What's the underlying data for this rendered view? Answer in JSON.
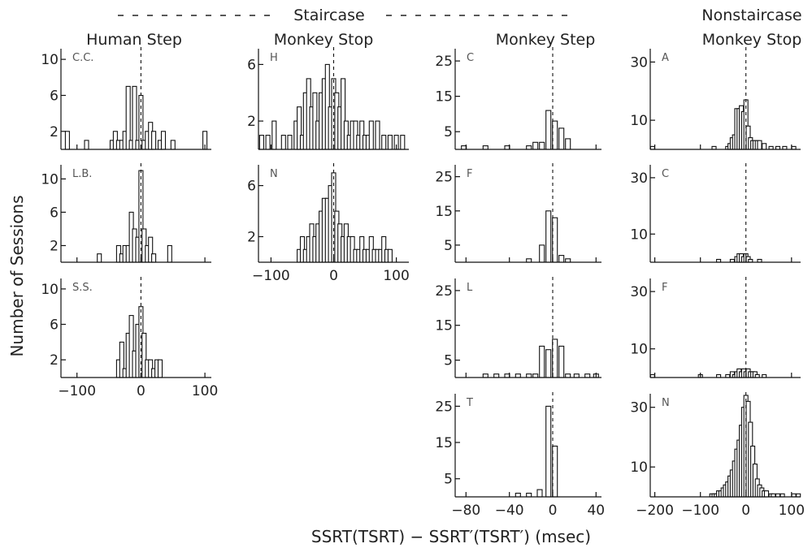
{
  "figure": {
    "super_header": "Staircase",
    "column_headers": [
      "Human Step",
      "Monkey Stop",
      "Monkey Step",
      "Nonstaircase",
      "Monkey Stop"
    ],
    "y_axis_label": "Number of Sessions",
    "x_axis_label": "SSRT(TSRT) − SSRT′(TSRT′) (msec)"
  },
  "chart_data": [
    {
      "type": "bar",
      "title": "C.C.",
      "group": "Human Step",
      "xlim": [
        -125,
        110
      ],
      "ylim": [
        0,
        11
      ],
      "yticks": [
        2,
        6,
        10
      ],
      "xticks": [
        -100,
        0,
        100
      ],
      "show_xtick_labels": false,
      "bins": [
        [
          -115,
          2
        ],
        [
          -85,
          1
        ],
        [
          -45,
          1
        ],
        [
          -40,
          2
        ],
        [
          -35,
          1
        ],
        [
          -30,
          1
        ],
        [
          -25,
          2
        ],
        [
          -20,
          7
        ],
        [
          -15,
          1
        ],
        [
          -10,
          7
        ],
        [
          -5,
          1
        ],
        [
          0,
          6
        ],
        [
          5,
          1
        ],
        [
          10,
          2
        ],
        [
          15,
          3
        ],
        [
          20,
          2
        ],
        [
          30,
          1
        ],
        [
          35,
          2
        ],
        [
          50,
          1
        ],
        [
          100,
          2
        ]
      ]
    },
    {
      "type": "bar",
      "title": "L.B.",
      "group": "Human Step",
      "xlim": [
        -125,
        110
      ],
      "ylim": [
        0,
        11.5
      ],
      "yticks": [
        2,
        6,
        10
      ],
      "xticks": [
        -100,
        0,
        100
      ],
      "show_xtick_labels": false,
      "bins": [
        [
          -65,
          1
        ],
        [
          -35,
          2
        ],
        [
          -30,
          1
        ],
        [
          -25,
          2
        ],
        [
          -20,
          2
        ],
        [
          -15,
          6
        ],
        [
          -10,
          4
        ],
        [
          -5,
          3
        ],
        [
          0,
          11
        ],
        [
          5,
          4
        ],
        [
          10,
          2
        ],
        [
          15,
          3
        ],
        [
          20,
          1
        ],
        [
          45,
          2
        ]
      ]
    },
    {
      "type": "bar",
      "title": "S.S.",
      "group": "Human Step",
      "xlim": [
        -125,
        110
      ],
      "ylim": [
        0,
        11
      ],
      "yticks": [
        2,
        6,
        10
      ],
      "xticks": [
        -100,
        0,
        100
      ],
      "show_xtick_labels": true,
      "bins": [
        [
          -35,
          2
        ],
        [
          -30,
          4
        ],
        [
          -25,
          1
        ],
        [
          -20,
          5
        ],
        [
          -15,
          7
        ],
        [
          -10,
          3
        ],
        [
          -5,
          6
        ],
        [
          0,
          8
        ],
        [
          5,
          5
        ],
        [
          10,
          2
        ],
        [
          15,
          2
        ],
        [
          20,
          1
        ],
        [
          25,
          2
        ],
        [
          30,
          2
        ]
      ]
    },
    {
      "type": "bar",
      "title": "H",
      "group": "Monkey Stop",
      "xlim": [
        -120,
        120
      ],
      "ylim": [
        0,
        7
      ],
      "yticks": [
        2,
        6
      ],
      "xticks": [
        -100,
        0,
        100
      ],
      "show_xtick_labels": false,
      "bins": [
        [
          -115,
          1
        ],
        [
          -105,
          1
        ],
        [
          -95,
          2
        ],
        [
          -80,
          1
        ],
        [
          -70,
          1
        ],
        [
          -60,
          2
        ],
        [
          -55,
          3
        ],
        [
          -50,
          1
        ],
        [
          -45,
          4
        ],
        [
          -40,
          5
        ],
        [
          -35,
          3
        ],
        [
          -30,
          4
        ],
        [
          -25,
          2
        ],
        [
          -20,
          4
        ],
        [
          -15,
          5
        ],
        [
          -10,
          6
        ],
        [
          -5,
          3
        ],
        [
          0,
          5
        ],
        [
          5,
          4
        ],
        [
          10,
          3
        ],
        [
          15,
          5
        ],
        [
          20,
          2
        ],
        [
          25,
          1
        ],
        [
          30,
          2
        ],
        [
          35,
          2
        ],
        [
          40,
          1
        ],
        [
          45,
          2
        ],
        [
          50,
          1
        ],
        [
          55,
          1
        ],
        [
          60,
          2
        ],
        [
          70,
          2
        ],
        [
          80,
          1
        ],
        [
          90,
          1
        ],
        [
          100,
          1
        ],
        [
          110,
          1
        ]
      ]
    },
    {
      "type": "bar",
      "title": "N",
      "group": "Monkey Stop",
      "xlim": [
        -120,
        120
      ],
      "ylim": [
        0,
        7.5
      ],
      "yticks": [
        2,
        6
      ],
      "xticks": [
        -100,
        0,
        100
      ],
      "show_xtick_labels": true,
      "bins": [
        [
          -55,
          1
        ],
        [
          -50,
          2
        ],
        [
          -45,
          1
        ],
        [
          -40,
          2
        ],
        [
          -35,
          3
        ],
        [
          -30,
          2
        ],
        [
          -25,
          3
        ],
        [
          -20,
          4
        ],
        [
          -15,
          5
        ],
        [
          -10,
          5
        ],
        [
          -5,
          6
        ],
        [
          0,
          7
        ],
        [
          5,
          4
        ],
        [
          10,
          3
        ],
        [
          15,
          2
        ],
        [
          20,
          3
        ],
        [
          25,
          2
        ],
        [
          30,
          2
        ],
        [
          35,
          1
        ],
        [
          40,
          1
        ],
        [
          45,
          2
        ],
        [
          50,
          1
        ],
        [
          55,
          1
        ],
        [
          60,
          2
        ],
        [
          65,
          1
        ],
        [
          70,
          1
        ],
        [
          75,
          1
        ],
        [
          80,
          2
        ],
        [
          85,
          1
        ],
        [
          90,
          1
        ]
      ]
    },
    {
      "type": "bar",
      "title": "C",
      "group": "Monkey Step",
      "xlim": [
        -90,
        45
      ],
      "ylim": [
        0,
        28
      ],
      "yticks": [
        5,
        15,
        25
      ],
      "xticks": [
        -80,
        -40,
        0,
        40
      ],
      "show_xtick_labels": false,
      "bins": [
        [
          -82,
          1
        ],
        [
          -62,
          1
        ],
        [
          -42,
          1
        ],
        [
          -22,
          1
        ],
        [
          -16,
          2
        ],
        [
          -10,
          2
        ],
        [
          -4,
          11
        ],
        [
          2,
          8
        ],
        [
          8,
          6
        ],
        [
          14,
          3
        ]
      ]
    },
    {
      "type": "bar",
      "title": "F",
      "group": "Monkey Step",
      "xlim": [
        -90,
        45
      ],
      "ylim": [
        0,
        28
      ],
      "yticks": [
        5,
        15,
        25
      ],
      "xticks": [
        -80,
        -40,
        0,
        40
      ],
      "show_xtick_labels": false,
      "bins": [
        [
          -22,
          1
        ],
        [
          -10,
          5
        ],
        [
          -4,
          15
        ],
        [
          2,
          13
        ],
        [
          8,
          2
        ],
        [
          14,
          1
        ]
      ]
    },
    {
      "type": "bar",
      "title": "L",
      "group": "Monkey Step",
      "xlim": [
        -90,
        45
      ],
      "ylim": [
        0,
        28
      ],
      "yticks": [
        5,
        15,
        25
      ],
      "xticks": [
        -80,
        -40,
        0,
        40
      ],
      "show_xtick_labels": false,
      "bins": [
        [
          -62,
          1
        ],
        [
          -52,
          1
        ],
        [
          -42,
          1
        ],
        [
          -32,
          1
        ],
        [
          -22,
          1
        ],
        [
          -16,
          1
        ],
        [
          -10,
          9
        ],
        [
          -4,
          8
        ],
        [
          2,
          11
        ],
        [
          8,
          9
        ],
        [
          14,
          1
        ],
        [
          22,
          1
        ],
        [
          32,
          1
        ],
        [
          40,
          1
        ]
      ]
    },
    {
      "type": "bar",
      "title": "T",
      "group": "Monkey Step",
      "xlim": [
        -90,
        45
      ],
      "ylim": [
        0,
        28
      ],
      "yticks": [
        5,
        15,
        25
      ],
      "xticks": [
        -80,
        -40,
        0,
        40
      ],
      "show_xtick_labels": true,
      "bins": [
        [
          -32,
          1
        ],
        [
          -22,
          1
        ],
        [
          -12,
          2
        ],
        [
          -4,
          25
        ],
        [
          2,
          14
        ]
      ]
    },
    {
      "type": "bar",
      "title": "A",
      "group": "Nonstaircase Monkey Stop",
      "xlim": [
        -210,
        120
      ],
      "ylim": [
        0,
        34
      ],
      "yticks": [
        10,
        30
      ],
      "xticks": [
        -200,
        -100,
        0,
        100
      ],
      "show_xtick_labels": false,
      "bins": [
        [
          -205,
          1
        ],
        [
          -70,
          1
        ],
        [
          -40,
          1
        ],
        [
          -35,
          2
        ],
        [
          -30,
          4
        ],
        [
          -25,
          5
        ],
        [
          -20,
          14
        ],
        [
          -15,
          14
        ],
        [
          -10,
          15
        ],
        [
          -5,
          13
        ],
        [
          0,
          17
        ],
        [
          5,
          8
        ],
        [
          10,
          4
        ],
        [
          15,
          3
        ],
        [
          20,
          3
        ],
        [
          25,
          3
        ],
        [
          30,
          3
        ],
        [
          40,
          2
        ],
        [
          55,
          1
        ],
        [
          70,
          1
        ],
        [
          85,
          1
        ],
        [
          105,
          1
        ]
      ]
    },
    {
      "type": "bar",
      "title": "C",
      "group": "Nonstaircase Monkey Stop",
      "xlim": [
        -210,
        120
      ],
      "ylim": [
        0,
        34
      ],
      "yticks": [
        10,
        30
      ],
      "xticks": [
        -200,
        -100,
        0,
        100
      ],
      "show_xtick_labels": false,
      "bins": [
        [
          -60,
          1
        ],
        [
          -30,
          1
        ],
        [
          -20,
          2
        ],
        [
          -15,
          3
        ],
        [
          -10,
          3
        ],
        [
          -5,
          2
        ],
        [
          0,
          3
        ],
        [
          5,
          2
        ],
        [
          10,
          1
        ],
        [
          30,
          1
        ]
      ]
    },
    {
      "type": "bar",
      "title": "F",
      "group": "Nonstaircase Monkey Stop",
      "xlim": [
        -210,
        120
      ],
      "ylim": [
        0,
        34
      ],
      "yticks": [
        10,
        30
      ],
      "xticks": [
        -200,
        -100,
        0,
        100
      ],
      "show_xtick_labels": false,
      "bins": [
        [
          -205,
          1
        ],
        [
          -100,
          1
        ],
        [
          -60,
          1
        ],
        [
          -40,
          1
        ],
        [
          -30,
          2
        ],
        [
          -25,
          1
        ],
        [
          -20,
          2
        ],
        [
          -15,
          3
        ],
        [
          -10,
          2
        ],
        [
          -5,
          3
        ],
        [
          0,
          2
        ],
        [
          5,
          3
        ],
        [
          10,
          2
        ],
        [
          15,
          2
        ],
        [
          20,
          2
        ],
        [
          25,
          1
        ],
        [
          40,
          1
        ]
      ]
    },
    {
      "type": "bar",
      "title": "N",
      "group": "Nonstaircase Monkey Stop",
      "xlim": [
        -210,
        120
      ],
      "ylim": [
        0,
        34
      ],
      "yticks": [
        10,
        30
      ],
      "xticks": [
        -200,
        -100,
        0,
        100
      ],
      "show_xtick_labels": true,
      "bins": [
        [
          -75,
          1
        ],
        [
          -70,
          1
        ],
        [
          -65,
          1
        ],
        [
          -60,
          2
        ],
        [
          -55,
          2
        ],
        [
          -50,
          3
        ],
        [
          -45,
          4
        ],
        [
          -40,
          5
        ],
        [
          -35,
          7
        ],
        [
          -30,
          9
        ],
        [
          -25,
          12
        ],
        [
          -20,
          16
        ],
        [
          -15,
          19
        ],
        [
          -10,
          24
        ],
        [
          -5,
          30
        ],
        [
          0,
          34
        ],
        [
          5,
          32
        ],
        [
          10,
          25
        ],
        [
          15,
          17
        ],
        [
          20,
          11
        ],
        [
          25,
          6
        ],
        [
          30,
          4
        ],
        [
          35,
          3
        ],
        [
          40,
          2
        ],
        [
          45,
          2
        ],
        [
          55,
          1
        ],
        [
          60,
          1
        ],
        [
          70,
          1
        ],
        [
          80,
          1
        ],
        [
          105,
          1
        ],
        [
          115,
          1
        ]
      ]
    }
  ]
}
